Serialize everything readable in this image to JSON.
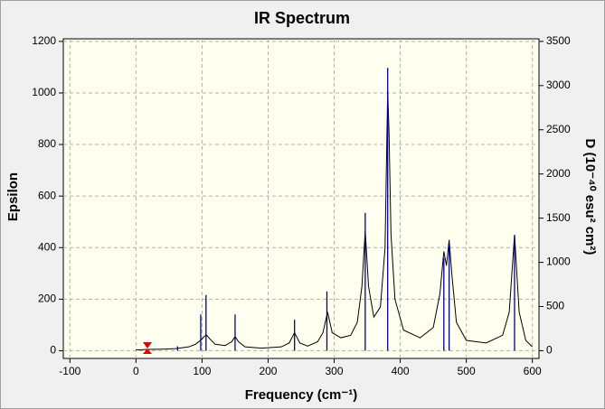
{
  "chart_data": {
    "type": "line",
    "title": "IR Spectrum",
    "x_label": "Frequency (cm⁻¹)",
    "y_label": "Epsilon",
    "y2_label": "D (10⁻⁴⁰ esu² cm²)",
    "xlim": [
      -110,
      610
    ],
    "ylim": [
      -30,
      1210
    ],
    "y2lim": [
      -87.5,
      3529.2
    ],
    "xticks": [
      -100,
      0,
      100,
      200,
      300,
      400,
      500,
      600
    ],
    "yticks": [
      0,
      200,
      400,
      600,
      800,
      1000,
      1200
    ],
    "y2ticks": [
      0,
      500,
      1000,
      1500,
      2000,
      2500,
      3000,
      3500
    ],
    "grid": true,
    "series": [
      {
        "color": "#000000",
        "style": "line",
        "x": [
          0,
          20,
          40,
          60,
          80,
          90,
          95,
          100,
          103,
          107,
          112,
          120,
          135,
          145,
          150,
          155,
          165,
          190,
          220,
          232,
          240,
          248,
          260,
          275,
          283,
          290,
          297,
          310,
          325,
          335,
          342,
          347,
          352,
          360,
          370,
          377,
          381,
          383,
          386,
          392,
          405,
          430,
          450,
          460,
          466,
          470,
          474,
          478,
          485,
          500,
          530,
          555,
          565,
          573,
          580,
          590,
          600
        ],
        "values": [
          3,
          5,
          6,
          8,
          15,
          25,
          35,
          45,
          55,
          60,
          45,
          25,
          20,
          35,
          55,
          35,
          15,
          10,
          15,
          30,
          70,
          30,
          18,
          35,
          70,
          150,
          70,
          50,
          60,
          110,
          250,
          465,
          250,
          130,
          170,
          400,
          1010,
          850,
          450,
          200,
          80,
          50,
          90,
          220,
          385,
          330,
          430,
          300,
          110,
          40,
          30,
          60,
          150,
          450,
          150,
          40,
          15
        ]
      },
      {
        "color": "#00008b",
        "style": "sticks",
        "axis": "y2",
        "x": [
          63,
          98,
          106,
          150,
          240,
          289,
          347,
          381,
          466,
          474,
          573
        ],
        "values": [
          50,
          410,
          630,
          410,
          350,
          670,
          1560,
          3200,
          1050,
          1200,
          1300
        ]
      }
    ]
  }
}
